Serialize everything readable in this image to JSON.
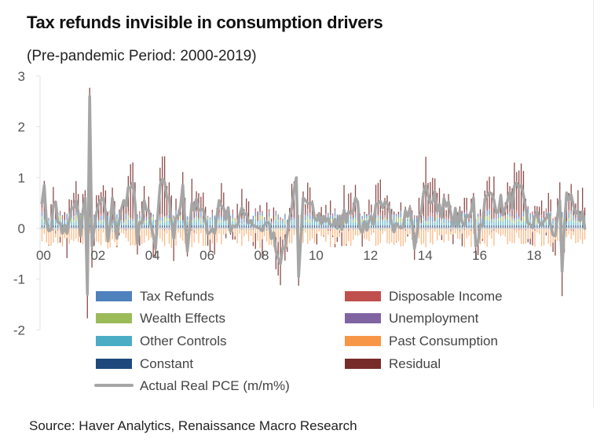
{
  "chart_data": {
    "type": "bar",
    "subtype": "stacked bar with line overlay",
    "title": "Tax refunds invisible in consumption drivers",
    "subtitle": "(Pre-pandemic Period: 2000-2019)",
    "source": "Source: Haver Analytics, Renaissance Macro Research",
    "xlabel": "",
    "ylabel": "",
    "ylim": [
      -2,
      3
    ],
    "yticks": [
      "3",
      "2",
      "1",
      "0",
      "-1",
      "-2"
    ],
    "ytick_values": [
      3,
      2,
      1,
      0,
      -1,
      -2
    ],
    "xticks": [
      "00",
      "02",
      "04",
      "06",
      "08",
      "10",
      "12",
      "14",
      "16",
      "18"
    ],
    "x_start": "2000-01",
    "x_end": "2019-12",
    "frequency": "monthly",
    "grid": false,
    "legend_position": "bottom-inside",
    "legend": [
      {
        "name": "Tax Refunds",
        "color": "#4f81bd",
        "kind": "bar"
      },
      {
        "name": "Disposable Income",
        "color": "#c0504d",
        "kind": "bar"
      },
      {
        "name": "Wealth Effects",
        "color": "#9bbb59",
        "kind": "bar"
      },
      {
        "name": "Unemployment",
        "color": "#8064a2",
        "kind": "bar"
      },
      {
        "name": "Other Controls",
        "color": "#4bacc6",
        "kind": "bar"
      },
      {
        "name": "Past Consumption",
        "color": "#f79646",
        "kind": "bar"
      },
      {
        "name": "Constant",
        "color": "#1f497d",
        "kind": "bar"
      },
      {
        "name": "Residual",
        "color": "#772c2a",
        "kind": "bar"
      },
      {
        "name": "Actual Real PCE (m/m%)",
        "color": "#a6a6a6",
        "kind": "line"
      }
    ],
    "series_note": "Synthetic reconstruction, not measured values: anchors approximate features visible in the image; all other months and the component breakdown come from a seeded generator.",
    "anchors": [
      {
        "month": 0,
        "pce": 0.5
      },
      {
        "month": 1,
        "pce": 0.85
      },
      {
        "month": 2,
        "pce": 0.1
      },
      {
        "month": 3,
        "pce": -0.05
      },
      {
        "month": 5,
        "pce": 0.45
      },
      {
        "month": 8,
        "pce": 0.1
      },
      {
        "month": 11,
        "pce": -0.1
      },
      {
        "month": 13,
        "pce": 0.4
      },
      {
        "month": 15,
        "pce": 0.55
      },
      {
        "month": 17,
        "pce": -0.15
      },
      {
        "month": 19,
        "pce": 0.6
      },
      {
        "month": 20,
        "pce": -1.3
      },
      {
        "month": 21,
        "pce": 2.6
      },
      {
        "month": 22,
        "pce": -0.35
      },
      {
        "month": 24,
        "pce": 0.3
      },
      {
        "month": 27,
        "pce": 0.6
      },
      {
        "month": 29,
        "pce": -0.25
      },
      {
        "month": 31,
        "pce": 0.6
      },
      {
        "month": 33,
        "pce": -0.2
      },
      {
        "month": 36,
        "pce": 0.55
      },
      {
        "month": 40,
        "pce": 0.9
      },
      {
        "month": 42,
        "pce": -0.3
      },
      {
        "month": 45,
        "pce": 0.55
      },
      {
        "month": 50,
        "pce": -0.4
      },
      {
        "month": 52,
        "pce": 0.85
      },
      {
        "month": 56,
        "pce": 0.6
      },
      {
        "month": 58,
        "pce": -0.2
      },
      {
        "month": 62,
        "pce": 0.85
      },
      {
        "month": 64,
        "pce": -0.45
      },
      {
        "month": 66,
        "pce": 0.5
      },
      {
        "month": 72,
        "pce": 0.15
      },
      {
        "month": 76,
        "pce": -0.1
      },
      {
        "month": 78,
        "pce": 0.55
      },
      {
        "month": 80,
        "pce": 0.4
      },
      {
        "month": 84,
        "pce": 0.05
      },
      {
        "month": 90,
        "pce": 0.3
      },
      {
        "month": 96,
        "pce": 0.0
      },
      {
        "month": 100,
        "pce": 0.1
      },
      {
        "month": 103,
        "pce": -0.45
      },
      {
        "month": 105,
        "pce": -0.7
      },
      {
        "month": 107,
        "pce": -0.4
      },
      {
        "month": 108,
        "pce": -0.1
      },
      {
        "month": 110,
        "pce": 0.4
      },
      {
        "month": 112,
        "pce": 1.0
      },
      {
        "month": 113,
        "pce": -0.95
      },
      {
        "month": 115,
        "pce": 0.6
      },
      {
        "month": 117,
        "pce": 0.5
      },
      {
        "month": 120,
        "pce": 0.2
      },
      {
        "month": 126,
        "pce": 0.2
      },
      {
        "month": 130,
        "pce": 0.0
      },
      {
        "month": 138,
        "pce": 0.6
      },
      {
        "month": 140,
        "pce": 0.0
      },
      {
        "month": 150,
        "pce": 0.4
      },
      {
        "month": 156,
        "pce": 0.1
      },
      {
        "month": 162,
        "pce": 0.4
      },
      {
        "month": 164,
        "pce": -0.4
      },
      {
        "month": 168,
        "pce": 0.7
      },
      {
        "month": 170,
        "pce": 0.65
      },
      {
        "month": 180,
        "pce": 0.3
      },
      {
        "month": 186,
        "pce": 0.05
      },
      {
        "month": 190,
        "pce": 0.6
      },
      {
        "month": 191,
        "pce": -0.35
      },
      {
        "month": 196,
        "pce": 0.65
      },
      {
        "month": 204,
        "pce": 0.4
      },
      {
        "month": 210,
        "pce": 0.8
      },
      {
        "month": 214,
        "pce": 0.1
      },
      {
        "month": 222,
        "pce": 0.2
      },
      {
        "month": 226,
        "pce": -0.15
      },
      {
        "month": 228,
        "pce": 0.55
      },
      {
        "month": 229,
        "pce": -0.85
      },
      {
        "month": 231,
        "pce": 0.7
      },
      {
        "month": 236,
        "pce": 0.35
      },
      {
        "month": 239,
        "pce": 0.0
      }
    ],
    "seed": 7
  },
  "axis": {
    "y_tick_labels": [
      "3",
      "2",
      "1",
      "0",
      "-1",
      "-2"
    ],
    "x_tick_labels": [
      "00",
      "02",
      "04",
      "06",
      "08",
      "10",
      "12",
      "14",
      "16",
      "18"
    ]
  }
}
